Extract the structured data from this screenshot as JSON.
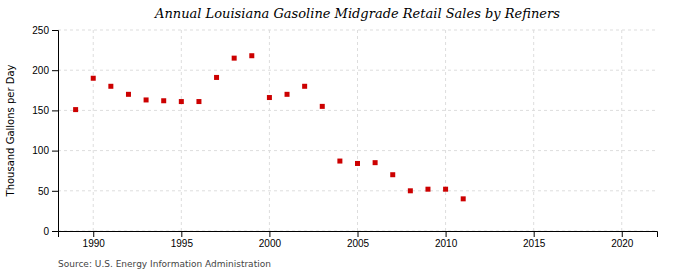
{
  "chart_data": {
    "type": "scatter",
    "title": "Annual Louisiana Gasoline Midgrade Retail Sales by Refiners",
    "y_label": "Thousand Gallons per Day",
    "source": "Source: U.S. Energy Information Administration",
    "x": [
      1989,
      1990,
      1991,
      1992,
      1993,
      1994,
      1995,
      1996,
      1997,
      1998,
      1999,
      2000,
      2001,
      2002,
      2003,
      2004,
      2005,
      2006,
      2007,
      2008,
      2009,
      2010,
      2011
    ],
    "values": [
      151,
      190,
      180,
      170,
      163,
      162,
      161,
      161,
      191,
      215,
      218,
      166,
      170,
      180,
      155,
      87,
      84,
      85,
      70,
      50,
      52,
      52,
      40
    ],
    "color": "#cc0000",
    "marker": "square",
    "xlim": [
      1988,
      2022
    ],
    "ylim": [
      0,
      250
    ],
    "xticks": [
      1990,
      1995,
      2000,
      2005,
      2010,
      2015,
      2020
    ],
    "yticks": [
      0,
      50,
      100,
      150,
      200,
      250
    ],
    "grid": true
  }
}
